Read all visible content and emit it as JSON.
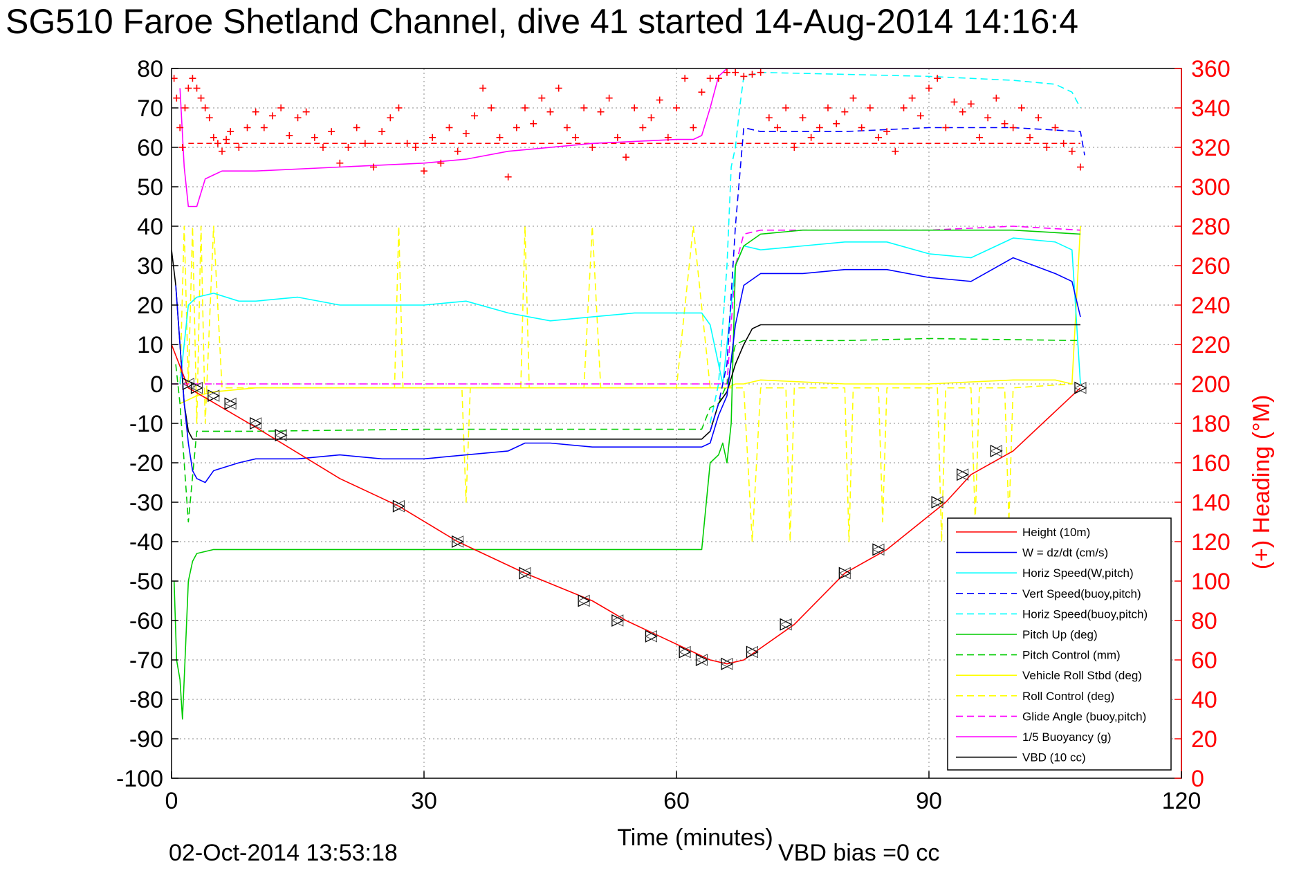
{
  "figure": {
    "title": "SG510 Faroe Shetland Channel, dive 41 started 14-Aug-2014 14:16:4",
    "timestamp": "02-Oct-2014 13:53:18",
    "vbd_bias": "VBD bias =0 cc"
  },
  "chart_data": {
    "type": "line",
    "xlabel": "Time (minutes)",
    "ylabel": "",
    "y2label": "(+) Heading (°M)",
    "xlim": [
      0,
      120
    ],
    "ylim": [
      -100,
      80
    ],
    "y2lim": [
      0,
      360
    ],
    "x_ticks": [
      "0",
      "30",
      "60",
      "90",
      "120"
    ],
    "y_ticks": [
      "80",
      "70",
      "60",
      "50",
      "40",
      "30",
      "20",
      "10",
      "0",
      "-10",
      "-20",
      "-30",
      "-40",
      "-50",
      "-60",
      "-70",
      "-80",
      "-90",
      "-100"
    ],
    "y2_ticks": [
      "360",
      "340",
      "320",
      "300",
      "280",
      "260",
      "240",
      "220",
      "200",
      "180",
      "160",
      "140",
      "120",
      "100",
      "80",
      "60",
      "40",
      "20",
      "0"
    ],
    "grid": true,
    "legend_position": "bottom-right",
    "colors": {
      "height": "#ff0000",
      "w": "#0000ff",
      "cyan": "#00ffff",
      "green": "#00cc00",
      "yellow": "#ffff00",
      "magenta": "#ff00ff",
      "black": "#000000",
      "heading": "#ff0000"
    },
    "series": [
      {
        "name": "Height (10m)",
        "color": "#ff0000",
        "style": "solid",
        "x": [
          0,
          2,
          10,
          20,
          27,
          34,
          42,
          50,
          54,
          58,
          62,
          64,
          66,
          68,
          74,
          80,
          85,
          92,
          95,
          100,
          108
        ],
        "y": [
          10,
          -1,
          -11,
          -24,
          -31,
          -40,
          -48,
          -55,
          -60,
          -64,
          -68,
          -70,
          -71,
          -70,
          -61,
          -48,
          -42,
          -30,
          -23,
          -17,
          -1
        ]
      },
      {
        "name": "W = dz/dt (cm/s)",
        "color": "#0000ff",
        "style": "solid",
        "x": [
          0.5,
          1,
          1.5,
          2,
          2.5,
          3,
          4,
          5,
          8,
          10,
          15,
          20,
          25,
          30,
          35,
          40,
          42,
          45,
          50,
          55,
          60,
          63,
          64,
          65,
          66,
          67,
          68,
          70,
          75,
          80,
          85,
          90,
          95,
          100,
          105,
          107,
          108
        ],
        "y": [
          25,
          10,
          -5,
          -15,
          -22,
          -24,
          -25,
          -22,
          -20,
          -19,
          -19,
          -18,
          -19,
          -19,
          -18,
          -17,
          -15,
          -15,
          -16,
          -16,
          -16,
          -16,
          -15,
          -8,
          -3,
          15,
          25,
          28,
          28,
          29,
          29,
          27,
          26,
          32,
          28,
          26,
          17
        ]
      },
      {
        "name": "Horiz Speed(W,pitch)",
        "color": "#00ffff",
        "style": "solid",
        "x": [
          1,
          2,
          3,
          5,
          8,
          10,
          15,
          20,
          25,
          30,
          35,
          40,
          45,
          50,
          55,
          60,
          63,
          64,
          65,
          65.5,
          66,
          67,
          68,
          70,
          75,
          80,
          85,
          90,
          95,
          100,
          105,
          107,
          108
        ],
        "y": [
          0,
          20,
          22,
          23,
          21,
          21,
          22,
          20,
          20,
          20,
          21,
          18,
          16,
          17,
          18,
          18,
          18,
          15,
          5,
          0,
          10,
          30,
          35,
          34,
          35,
          36,
          36,
          33,
          32,
          37,
          36,
          34,
          0
        ]
      },
      {
        "name": "Vert Speed(buoy,pitch)",
        "color": "#0000ff",
        "style": "dashed",
        "x": [
          64,
          65,
          66,
          67,
          68,
          70,
          80,
          90,
          100,
          108,
          108.5
        ],
        "y": [
          -12,
          -5,
          5,
          40,
          65,
          64,
          64,
          65,
          65,
          64,
          58
        ]
      },
      {
        "name": "Horiz Speed(buoy,pitch)",
        "color": "#00ffff",
        "style": "dashed",
        "x": [
          64,
          65,
          66,
          66.5,
          67,
          67.5,
          68,
          70,
          80,
          90,
          100,
          105,
          107,
          108
        ],
        "y": [
          -10,
          0,
          30,
          55,
          60,
          70,
          78,
          79,
          78.5,
          78,
          77,
          76,
          74,
          70
        ]
      },
      {
        "name": "Pitch Up (deg)",
        "color": "#00cc00",
        "style": "solid",
        "x": [
          0.3,
          0.6,
          1,
          1.3,
          1.6,
          2,
          2.5,
          3,
          5,
          10,
          20,
          30,
          40,
          50,
          60,
          63,
          64,
          65,
          65.5,
          66,
          66.5,
          67,
          68,
          70,
          75,
          80,
          90,
          100,
          108
        ],
        "y": [
          -50,
          -70,
          -75,
          -85,
          -70,
          -50,
          -45,
          -43,
          -42,
          -42,
          -42,
          -42,
          -42,
          -42,
          -42,
          -42,
          -20,
          -18,
          -15,
          -20,
          -10,
          30,
          35,
          38,
          39,
          39,
          39,
          39,
          38
        ]
      },
      {
        "name": "Pitch Control (mm)",
        "color": "#00cc00",
        "style": "dashed",
        "x": [
          0.5,
          1,
          1.5,
          2,
          3,
          10,
          30,
          50,
          63,
          64,
          65,
          66,
          67,
          68,
          70,
          80,
          90,
          108
        ],
        "y": [
          5,
          -5,
          -20,
          -35,
          -12,
          -12,
          -11.5,
          -11.5,
          -11.5,
          -6,
          -5,
          0,
          10,
          11,
          11,
          11,
          11.5,
          11
        ]
      },
      {
        "name": "Vehicle Roll Stbd (deg)",
        "color": "#ffff00",
        "style": "solid",
        "x": [
          1,
          3,
          5,
          10,
          20,
          30,
          40,
          50,
          60,
          64,
          65,
          66,
          67,
          68,
          70,
          80,
          90,
          100,
          105,
          107,
          108
        ],
        "y": [
          -5,
          -3,
          -2,
          -1,
          -1,
          -1,
          -1,
          -1,
          -1,
          -1,
          -1,
          -1,
          0,
          0,
          1,
          0,
          0,
          1,
          1,
          0,
          40
        ]
      },
      {
        "name": "Roll Control (deg)",
        "color": "#ffff00",
        "style": "dashed",
        "x": [
          1,
          1.5,
          2,
          2.5,
          3,
          3.5,
          4,
          5,
          6,
          10,
          20,
          26.5,
          27,
          27.5,
          30,
          34.5,
          35,
          35.5,
          41.5,
          42,
          42.5,
          49,
          50,
          51,
          60,
          62,
          64,
          68,
          69,
          70,
          73,
          73.5,
          74,
          80,
          80.5,
          81,
          84,
          84.5,
          85,
          91,
          91.5,
          92,
          95,
          95.5,
          96,
          99,
          99.5,
          100,
          107
        ],
        "y": [
          0,
          40,
          0,
          40,
          -10,
          40,
          -10,
          40,
          -1,
          -1,
          -1,
          -1,
          40,
          -1,
          -1,
          -1,
          -30,
          -1,
          -1,
          40,
          -1,
          -1,
          40,
          -1,
          -1,
          40,
          -1,
          -1,
          -40,
          -1,
          -1,
          -40,
          -1,
          -1,
          -40,
          -1,
          -1,
          -35,
          -1,
          -1,
          -40,
          -1,
          -1,
          -35,
          -1,
          -1,
          -35,
          -1,
          0
        ]
      },
      {
        "name": "Glide Angle (buoy,pitch)",
        "color": "#ff00ff",
        "style": "dashed",
        "x": [
          0,
          10,
          30,
          50,
          60,
          64,
          65,
          66,
          67,
          68,
          70,
          80,
          90,
          100,
          108
        ],
        "y": [
          0,
          0,
          0,
          0,
          0,
          0,
          0,
          0,
          30,
          38,
          39,
          39,
          39,
          40,
          39
        ]
      },
      {
        "name": "1/5 Buoyancy (g)",
        "color": "#ff00ff",
        "style": "solid",
        "x": [
          1,
          1.5,
          2,
          3,
          4,
          5,
          6,
          10,
          20,
          30,
          35,
          40,
          50,
          60,
          62,
          63,
          64,
          65,
          66,
          108
        ],
        "y": [
          75,
          55,
          45,
          45,
          52,
          53,
          54,
          54,
          55,
          56,
          57,
          59,
          61,
          62,
          62,
          63,
          70,
          78,
          80,
          80
        ]
      },
      {
        "name": "VBD (10 cc)",
        "color": "#000000",
        "style": "solid",
        "x": [
          0,
          0.5,
          1,
          1.5,
          2,
          2.5,
          3,
          10,
          30,
          50,
          60,
          63,
          64,
          65,
          66,
          67,
          68,
          69,
          70,
          80,
          90,
          100,
          108
        ],
        "y": [
          34,
          25,
          10,
          -5,
          -12,
          -14,
          -14,
          -14,
          -14,
          -14,
          -14,
          -14,
          -12,
          -5,
          -2,
          5,
          10,
          14,
          15,
          15,
          15,
          15,
          15
        ]
      }
    ],
    "heading": {
      "name": "(+) Heading (°M)",
      "color": "#ff0000",
      "axis": "right",
      "marker": "+",
      "reference": 322,
      "x": [
        0.3,
        0.6,
        1,
        1.3,
        1.6,
        2,
        2.5,
        3,
        3.5,
        4,
        4.5,
        5,
        5.5,
        6,
        6.5,
        7,
        8,
        9,
        10,
        11,
        12,
        13,
        14,
        15,
        16,
        17,
        18,
        19,
        20,
        21,
        22,
        23,
        24,
        25,
        26,
        27,
        28,
        29,
        30,
        31,
        32,
        33,
        34,
        35,
        36,
        37,
        38,
        39,
        40,
        41,
        42,
        43,
        44,
        45,
        46,
        47,
        48,
        49,
        50,
        51,
        52,
        53,
        54,
        55,
        56,
        57,
        58,
        59,
        60,
        61,
        62,
        63,
        64,
        65,
        66,
        67,
        68,
        69,
        70,
        71,
        72,
        73,
        74,
        75,
        76,
        77,
        78,
        79,
        80,
        81,
        82,
        83,
        84,
        85,
        86,
        87,
        88,
        89,
        90,
        91,
        92,
        93,
        94,
        95,
        96,
        97,
        98,
        99,
        100,
        101,
        102,
        103,
        104,
        105,
        106,
        107,
        108
      ],
      "y": [
        355,
        345,
        330,
        320,
        340,
        350,
        355,
        350,
        345,
        340,
        335,
        325,
        322,
        318,
        324,
        328,
        320,
        330,
        338,
        330,
        336,
        340,
        326,
        335,
        338,
        325,
        320,
        328,
        312,
        320,
        330,
        322,
        310,
        328,
        335,
        340,
        322,
        320,
        308,
        325,
        312,
        330,
        318,
        327,
        336,
        350,
        340,
        325,
        305,
        330,
        340,
        332,
        345,
        338,
        350,
        330,
        325,
        340,
        320,
        338,
        345,
        325,
        315,
        340,
        330,
        335,
        344,
        325,
        340,
        355,
        330,
        348,
        355,
        355,
        358,
        358,
        356,
        357,
        358,
        335,
        330,
        340,
        320,
        335,
        325,
        330,
        340,
        332,
        338,
        345,
        330,
        340,
        325,
        328,
        318,
        340,
        345,
        336,
        350,
        355,
        330,
        343,
        338,
        342,
        325,
        335,
        345,
        332,
        330,
        340,
        325,
        335,
        320,
        330,
        322,
        318,
        310
      ]
    },
    "triangle_markers": {
      "x": [
        2,
        3,
        5,
        7,
        10,
        13,
        27,
        34,
        42,
        49,
        53,
        57,
        61,
        63,
        66,
        69,
        73,
        80,
        84,
        91,
        94,
        98,
        108
      ],
      "y": [
        0,
        -1,
        -3,
        -5,
        -10,
        -13,
        -31,
        -40,
        -48,
        -55,
        -60,
        -64,
        -68,
        -70,
        -71,
        -68,
        -61,
        -48,
        -42,
        -30,
        -23,
        -17,
        -1
      ]
    }
  }
}
